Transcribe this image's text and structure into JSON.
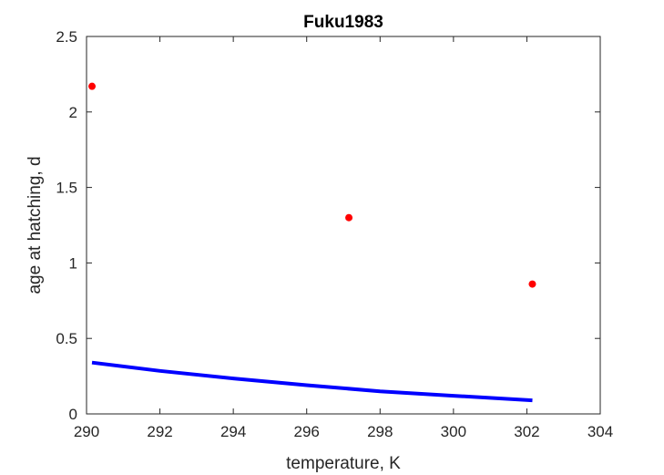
{
  "chart_data": {
    "type": "scatter",
    "title": "Fuku1983",
    "xlabel": "temperature, K",
    "ylabel": "age at hatching, d",
    "xlim": [
      290,
      304
    ],
    "ylim": [
      0,
      2.5
    ],
    "xticks": [
      "290",
      "292",
      "294",
      "296",
      "298",
      "300",
      "302",
      "304"
    ],
    "yticks": [
      "0",
      "0.5",
      "1",
      "1.5",
      "2",
      "2.5"
    ],
    "grid": false,
    "series": [
      {
        "kind": "scatter",
        "color": "#ff0000",
        "x": [
          290.15,
          297.15,
          302.15
        ],
        "y": [
          2.17,
          1.3,
          0.86
        ]
      },
      {
        "kind": "line",
        "color": "#0000ff",
        "x": [
          290.15,
          292,
          294,
          296,
          298,
          300,
          302.15
        ],
        "y": [
          0.34,
          0.285,
          0.235,
          0.19,
          0.15,
          0.12,
          0.09
        ]
      }
    ]
  }
}
